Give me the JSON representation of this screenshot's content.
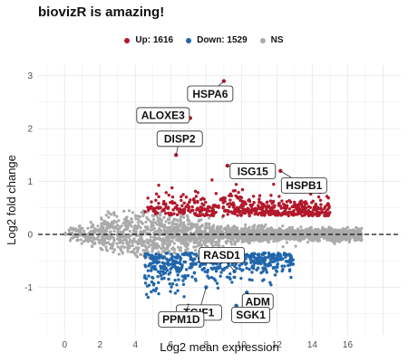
{
  "title": "biovizR is amazing!",
  "legend": {
    "up": "Up: 1616",
    "down": "Down: 1529",
    "ns": "NS"
  },
  "colors": {
    "up": "#b2182b",
    "down": "#2166ac",
    "ns": "#aaaaaa",
    "grid": "#ebebeb"
  },
  "chart_data": {
    "type": "scatter",
    "title": "biovizR is amazing!",
    "xlabel": "Log2 mean expression",
    "ylabel": "Log2 fold change",
    "xlim": [
      -1.5,
      19
    ],
    "ylim": [
      -1.9,
      3.2
    ],
    "xticks": [
      0,
      2,
      4,
      6,
      8,
      10,
      12,
      14,
      16
    ],
    "yticks": [
      -1,
      0,
      1,
      2,
      3
    ],
    "reference_line_y": 0,
    "grid": true,
    "legend_position": "top",
    "series": [
      {
        "name": "Up: 1616",
        "count": 1616
      },
      {
        "name": "Down: 1529",
        "count": 1529
      },
      {
        "name": "NS"
      }
    ],
    "highlighted_points": [
      {
        "gene": "HSPA6",
        "x": 9.0,
        "y": 2.9
      },
      {
        "gene": "ALOXE3",
        "x": 7.1,
        "y": 2.2
      },
      {
        "gene": "DISP2",
        "x": 6.3,
        "y": 1.5
      },
      {
        "gene": "ISG15",
        "x": 9.2,
        "y": 1.3
      },
      {
        "gene": "HSPB1",
        "x": 12.2,
        "y": 1.2
      },
      {
        "gene": "RASD1",
        "x": 9.6,
        "y": -0.7
      },
      {
        "gene": "TGIF1",
        "x": 8.0,
        "y": -1.0
      },
      {
        "gene": "ADM",
        "x": 10.3,
        "y": -1.1
      },
      {
        "gene": "PPM1D",
        "x": 7.0,
        "y": -1.35
      },
      {
        "gene": "SGK1",
        "x": 9.7,
        "y": -1.35
      }
    ]
  }
}
